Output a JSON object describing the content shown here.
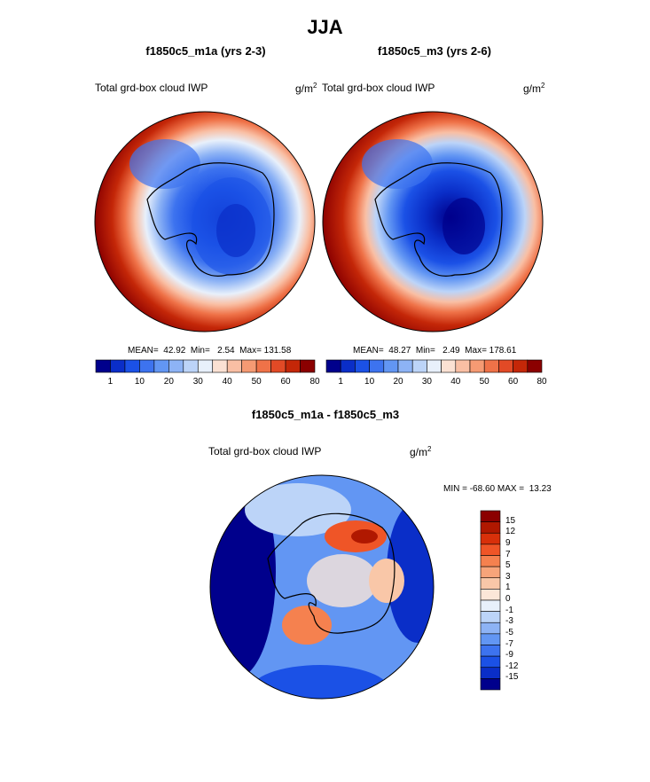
{
  "title": "JJA",
  "panels": [
    {
      "title": "f1850c5_m1a (yrs 2-3)",
      "variable": "Total grd-box cloud IWP",
      "units_base": "g/m",
      "units_exp": "2",
      "stats": "MEAN=  42.92  Min=   2.54  Max= 131.58"
    },
    {
      "title": "f1850c5_m3 (yrs 2-6)",
      "variable": "Total grd-box cloud IWP",
      "units_base": "g/m",
      "units_exp": "2",
      "stats": "MEAN=  48.27  Min=   2.49  Max= 178.61"
    },
    {
      "title": "f1850c5_m1a - f1850c5_m3",
      "variable": "Total grd-box cloud IWP",
      "units_base": "g/m",
      "units_exp": "2",
      "stats": "MIN = -68.60 MAX =  13.23"
    }
  ],
  "colorbar_abs": {
    "colors": [
      "#00008c",
      "#0a2ec8",
      "#1b51e6",
      "#3d73ef",
      "#6296f3",
      "#8db3f5",
      "#bcd4f8",
      "#e8f0fb",
      "#fbe1d3",
      "#f9bfa4",
      "#f59a73",
      "#ef7248",
      "#e24a26",
      "#c42708",
      "#8b0000"
    ],
    "tick_labels": [
      "1",
      "10",
      "20",
      "30",
      "40",
      "50",
      "60",
      "80"
    ]
  },
  "colorbar_diff": {
    "colors": [
      "#8b0000",
      "#b01800",
      "#d8300a",
      "#ef5527",
      "#f5814f",
      "#f7a47a",
      "#f9c7a8",
      "#fbe6d8",
      "#e8f0fb",
      "#bcd4f8",
      "#8db3f5",
      "#6296f3",
      "#3d73ef",
      "#1b51e6",
      "#0a2ec8",
      "#00008c"
    ],
    "tick_labels": [
      "15",
      "12",
      "9",
      "7",
      "5",
      "3",
      "1",
      "0",
      "-1",
      "-3",
      "-5",
      "-7",
      "-9",
      "-12",
      "-15"
    ]
  },
  "maps": {
    "ocean_color": "#8b0000",
    "coastline_color": "#000000"
  }
}
